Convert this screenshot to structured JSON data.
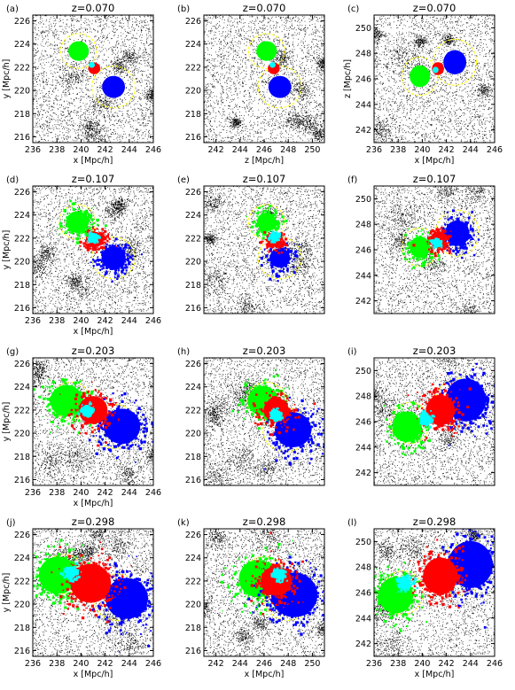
{
  "chart_data": [
    {
      "label": "(a)",
      "title": "z=0.070",
      "xlabel": "x [Mpc/h]",
      "ylabel": "y [Mpc/h]",
      "xlim": [
        236,
        246
      ],
      "ylim": [
        215.5,
        226.5
      ],
      "xticks": [
        236,
        238,
        240,
        242,
        244,
        246
      ],
      "yticks": [
        216,
        218,
        220,
        222,
        224,
        226
      ],
      "blobs": [
        {
          "series": "green",
          "x": 239.8,
          "y": 223.4,
          "r": 0.85
        },
        {
          "series": "blue",
          "x": 242.7,
          "y": 220.3,
          "r": 0.95
        },
        {
          "series": "red",
          "x": 241.1,
          "y": 221.9,
          "r": 0.5
        },
        {
          "series": "cyan",
          "x": 240.9,
          "y": 222.2,
          "r": 0.25
        }
      ],
      "circles": [
        {
          "x": 239.8,
          "y": 223.4,
          "r": 1.5
        },
        {
          "x": 242.7,
          "y": 220.3,
          "r": 1.8
        }
      ]
    },
    {
      "label": "(b)",
      "title": "z=0.070",
      "xlabel": "z [Mpc/h]",
      "ylabel": "",
      "xlim": [
        241,
        251
      ],
      "ylim": [
        215.5,
        226.5
      ],
      "xticks": [
        242,
        244,
        246,
        248,
        250
      ],
      "yticks": [
        216,
        218,
        220,
        222,
        224,
        226
      ],
      "blobs": [
        {
          "series": "green",
          "x": 246.2,
          "y": 223.4,
          "r": 0.85
        },
        {
          "series": "blue",
          "x": 247.3,
          "y": 220.3,
          "r": 0.95
        },
        {
          "series": "red",
          "x": 246.8,
          "y": 221.9,
          "r": 0.5
        },
        {
          "series": "cyan",
          "x": 246.7,
          "y": 222.2,
          "r": 0.25
        }
      ],
      "circles": [
        {
          "x": 246.2,
          "y": 223.4,
          "r": 1.5
        },
        {
          "x": 247.3,
          "y": 220.3,
          "r": 1.8
        }
      ]
    },
    {
      "label": "(c)",
      "title": "z=0.070",
      "xlabel": "x [Mpc/h]",
      "ylabel": "z [Mpc/h]",
      "xlim": [
        236,
        246
      ],
      "ylim": [
        241,
        251
      ],
      "xticks": [
        236,
        238,
        240,
        242,
        244,
        246
      ],
      "yticks": [
        242,
        244,
        246,
        248,
        250
      ],
      "blobs": [
        {
          "series": "green",
          "x": 239.8,
          "y": 246.2,
          "r": 0.85
        },
        {
          "series": "blue",
          "x": 242.7,
          "y": 247.3,
          "r": 0.95
        },
        {
          "series": "red",
          "x": 241.3,
          "y": 246.8,
          "r": 0.5
        },
        {
          "series": "cyan",
          "x": 241.1,
          "y": 246.7,
          "r": 0.25
        }
      ],
      "circles": [
        {
          "x": 239.8,
          "y": 246.2,
          "r": 1.5
        },
        {
          "x": 242.7,
          "y": 247.3,
          "r": 1.8
        }
      ]
    },
    {
      "label": "(d)",
      "title": "z=0.107",
      "xlabel": "x [Mpc/h]",
      "ylabel": "y [Mpc/h]",
      "xlim": [
        236,
        246
      ],
      "ylim": [
        215.5,
        226.5
      ],
      "xticks": [
        236,
        238,
        240,
        242,
        244,
        246
      ],
      "yticks": [
        216,
        218,
        220,
        222,
        224,
        226
      ],
      "blobs": [
        {
          "series": "green",
          "x": 239.7,
          "y": 223.4,
          "r": 1.15
        },
        {
          "series": "blue",
          "x": 242.7,
          "y": 220.3,
          "r": 1.25
        },
        {
          "series": "red",
          "x": 241.2,
          "y": 221.9,
          "r": 0.8
        },
        {
          "series": "cyan",
          "x": 240.9,
          "y": 222.1,
          "r": 0.35
        }
      ],
      "circles": [
        {
          "x": 239.7,
          "y": 223.4,
          "r": 1.5
        },
        {
          "x": 242.7,
          "y": 220.3,
          "r": 1.8
        }
      ]
    },
    {
      "label": "(e)",
      "title": "z=0.107",
      "xlabel": "",
      "ylabel": "",
      "xlim": [
        241,
        251
      ],
      "ylim": [
        215.5,
        226.5
      ],
      "xticks": [],
      "yticks": [
        216,
        218,
        220,
        222,
        224,
        226
      ],
      "blobs": [
        {
          "series": "green",
          "x": 246.2,
          "y": 223.4,
          "r": 1.0
        },
        {
          "series": "blue",
          "x": 247.3,
          "y": 220.3,
          "r": 1.05
        },
        {
          "series": "red",
          "x": 246.8,
          "y": 221.9,
          "r": 0.7
        },
        {
          "series": "cyan",
          "x": 246.7,
          "y": 222.2,
          "r": 0.3
        }
      ],
      "circles": [
        {
          "x": 246.2,
          "y": 223.4,
          "r": 1.5
        },
        {
          "x": 247.3,
          "y": 220.3,
          "r": 1.8
        }
      ]
    },
    {
      "label": "(f)",
      "title": "z=0.107",
      "xlabel": "",
      "ylabel": "",
      "xlim": [
        236,
        246
      ],
      "ylim": [
        241,
        251
      ],
      "xticks": [],
      "yticks": [
        242,
        244,
        246,
        248,
        250
      ],
      "blobs": [
        {
          "series": "green",
          "x": 239.8,
          "y": 246.2,
          "r": 1.05
        },
        {
          "series": "blue",
          "x": 242.9,
          "y": 247.3,
          "r": 1.25
        },
        {
          "series": "red",
          "x": 241.3,
          "y": 246.8,
          "r": 0.8
        },
        {
          "series": "cyan",
          "x": 241.1,
          "y": 246.6,
          "r": 0.3
        }
      ],
      "circles": [
        {
          "x": 239.8,
          "y": 246.2,
          "r": 1.5
        },
        {
          "x": 242.9,
          "y": 247.3,
          "r": 1.8
        }
      ]
    },
    {
      "label": "(g)",
      "title": "z=0.203",
      "xlabel": "x [Mpc/h]",
      "ylabel": "y [Mpc/h]",
      "xlim": [
        236,
        246
      ],
      "ylim": [
        215.5,
        226.5
      ],
      "xticks": [
        236,
        238,
        240,
        242,
        244,
        246
      ],
      "yticks": [
        216,
        218,
        220,
        222,
        224,
        226
      ],
      "blobs": [
        {
          "series": "green",
          "x": 238.8,
          "y": 222.8,
          "r": 1.7
        },
        {
          "series": "blue",
          "x": 243.4,
          "y": 220.6,
          "r": 1.9
        },
        {
          "series": "red",
          "x": 241.0,
          "y": 222.0,
          "r": 1.5
        },
        {
          "series": "cyan",
          "x": 240.4,
          "y": 222.0,
          "r": 0.45
        }
      ],
      "circles": [
        {
          "x": 239.2,
          "y": 222.8,
          "r": 1.6
        },
        {
          "x": 242.8,
          "y": 220.6,
          "r": 1.9
        }
      ]
    },
    {
      "label": "(h)",
      "title": "z=0.203",
      "xlabel": "",
      "ylabel": "",
      "xlim": [
        241,
        251
      ],
      "ylim": [
        215.5,
        226.5
      ],
      "xticks": [],
      "yticks": [
        216,
        218,
        220,
        222,
        224,
        226
      ],
      "blobs": [
        {
          "series": "green",
          "x": 245.9,
          "y": 222.8,
          "r": 1.6
        },
        {
          "series": "blue",
          "x": 248.4,
          "y": 220.3,
          "r": 1.9
        },
        {
          "series": "red",
          "x": 247.0,
          "y": 222.0,
          "r": 1.3
        },
        {
          "series": "cyan",
          "x": 246.9,
          "y": 221.7,
          "r": 0.4
        }
      ],
      "circles": [
        {
          "x": 246.2,
          "y": 222.8,
          "r": 1.6
        },
        {
          "x": 247.8,
          "y": 220.3,
          "r": 1.9
        }
      ]
    },
    {
      "label": "(i)",
      "title": "z=0.203",
      "xlabel": "",
      "ylabel": "",
      "xlim": [
        236,
        246
      ],
      "ylim": [
        241,
        251
      ],
      "xticks": [],
      "yticks": [
        242,
        244,
        246,
        248,
        250
      ],
      "blobs": [
        {
          "series": "green",
          "x": 238.7,
          "y": 245.6,
          "r": 1.5
        },
        {
          "series": "blue",
          "x": 243.6,
          "y": 247.7,
          "r": 2.1
        },
        {
          "series": "red",
          "x": 241.5,
          "y": 246.9,
          "r": 1.5
        },
        {
          "series": "cyan",
          "x": 240.2,
          "y": 246.3,
          "r": 0.45
        }
      ],
      "circles": [
        {
          "x": 239.0,
          "y": 245.9,
          "r": 1.6
        },
        {
          "x": 243.0,
          "y": 247.5,
          "r": 1.9
        }
      ]
    },
    {
      "label": "(j)",
      "title": "z=0.298",
      "xlabel": "x [Mpc/h]",
      "ylabel": "y [Mpc/h]",
      "xlim": [
        236,
        246
      ],
      "ylim": [
        215.5,
        226.5
      ],
      "xticks": [
        236,
        238,
        240,
        242,
        244,
        246
      ],
      "yticks": [
        216,
        218,
        220,
        222,
        224,
        226
      ],
      "blobs": [
        {
          "series": "green",
          "x": 238.1,
          "y": 222.5,
          "r": 2.0
        },
        {
          "series": "blue",
          "x": 243.8,
          "y": 220.5,
          "r": 2.2
        },
        {
          "series": "red",
          "x": 240.8,
          "y": 221.8,
          "r": 2.1
        },
        {
          "series": "cyan",
          "x": 239.1,
          "y": 222.8,
          "r": 0.55
        }
      ],
      "circles": [
        {
          "x": 238.6,
          "y": 222.6,
          "r": 1.7
        },
        {
          "x": 243.0,
          "y": 220.6,
          "r": 2.0
        }
      ]
    },
    {
      "label": "(k)",
      "title": "z=0.298",
      "xlabel": "x [Mpc/h]",
      "ylabel": "",
      "xlim": [
        241,
        251
      ],
      "ylim": [
        215.5,
        226.5
      ],
      "xticks": [
        242,
        244,
        246,
        248,
        250
      ],
      "yticks": [
        216,
        218,
        220,
        222,
        224,
        226
      ],
      "blobs": [
        {
          "series": "green",
          "x": 245.5,
          "y": 222.2,
          "r": 2.0
        },
        {
          "series": "blue",
          "x": 248.5,
          "y": 220.8,
          "r": 2.4
        },
        {
          "series": "red",
          "x": 247.0,
          "y": 222.0,
          "r": 1.6
        },
        {
          "series": "cyan",
          "x": 247.2,
          "y": 222.6,
          "r": 0.45
        }
      ],
      "circles": [
        {
          "x": 246.0,
          "y": 222.4,
          "r": 1.7
        },
        {
          "x": 248.0,
          "y": 220.6,
          "r": 2.0
        }
      ]
    },
    {
      "label": "(l)",
      "title": "z=0.298",
      "xlabel": "x [Mpc/h]",
      "ylabel": "",
      "xlim": [
        236,
        246
      ],
      "ylim": [
        241,
        251
      ],
      "xticks": [
        236,
        238,
        240,
        242,
        244,
        246
      ],
      "yticks": [
        242,
        244,
        246,
        248,
        250
      ],
      "blobs": [
        {
          "series": "green",
          "x": 237.8,
          "y": 245.8,
          "r": 1.8
        },
        {
          "series": "blue",
          "x": 244.0,
          "y": 248.2,
          "r": 2.3
        },
        {
          "series": "red",
          "x": 241.5,
          "y": 247.3,
          "r": 1.8
        },
        {
          "series": "cyan",
          "x": 238.5,
          "y": 246.8,
          "r": 0.55
        }
      ],
      "circles": [
        {
          "x": 238.4,
          "y": 246.0,
          "r": 1.7
        },
        {
          "x": 243.2,
          "y": 247.8,
          "r": 2.0
        }
      ]
    }
  ],
  "colors": {
    "green": "#00ff00",
    "blue": "#0000ff",
    "red": "#ff0000",
    "cyan": "#00ffff",
    "circle": "#ffff00",
    "particles": "#000000"
  }
}
